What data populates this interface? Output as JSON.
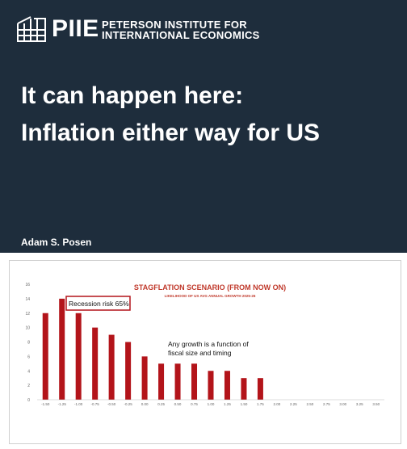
{
  "slide": {
    "brand_short": "PIIE",
    "brand_line1": "PETERSON INSTITUTE FOR",
    "brand_line2": "INTERNATIONAL ECONOMICS",
    "headline_line1": "It can happen here:",
    "headline_line2": "Inflation either way for US",
    "author": "Adam S. Posen"
  },
  "colors": {
    "slide_bg": "#1e2d3c",
    "bar": "#b3141a",
    "title_red": "#c0392b"
  },
  "chart_data": {
    "type": "bar",
    "title": "STAGFLATION SCENARIO (FROM NOW ON)",
    "subtitle": "LIKELIHOOD OF US AVG ANNUAL GROWTH 2025-26",
    "categories": [
      "-1.50",
      "-1.25",
      "-1.00",
      "-0.75",
      "-0.50",
      "-0.25",
      "0.00",
      "0.25",
      "0.50",
      "0.75",
      "1.00",
      "1.25",
      "1.50",
      "1.75",
      "2.00",
      "2.25",
      "2.50",
      "2.75",
      "3.00",
      "3.25",
      "3.50"
    ],
    "values": [
      12,
      14,
      12,
      10,
      9,
      8,
      6,
      5,
      5,
      5,
      4,
      4,
      3,
      3,
      0,
      0,
      0,
      0,
      0,
      0,
      0
    ],
    "ylim": [
      0,
      16
    ],
    "yticks": [
      0,
      2,
      4,
      6,
      8,
      10,
      12,
      14,
      16
    ],
    "grid": false,
    "annotations": [
      "Recession risk 65%",
      "Any growth is a function of",
      "fiscal size and timing"
    ]
  }
}
